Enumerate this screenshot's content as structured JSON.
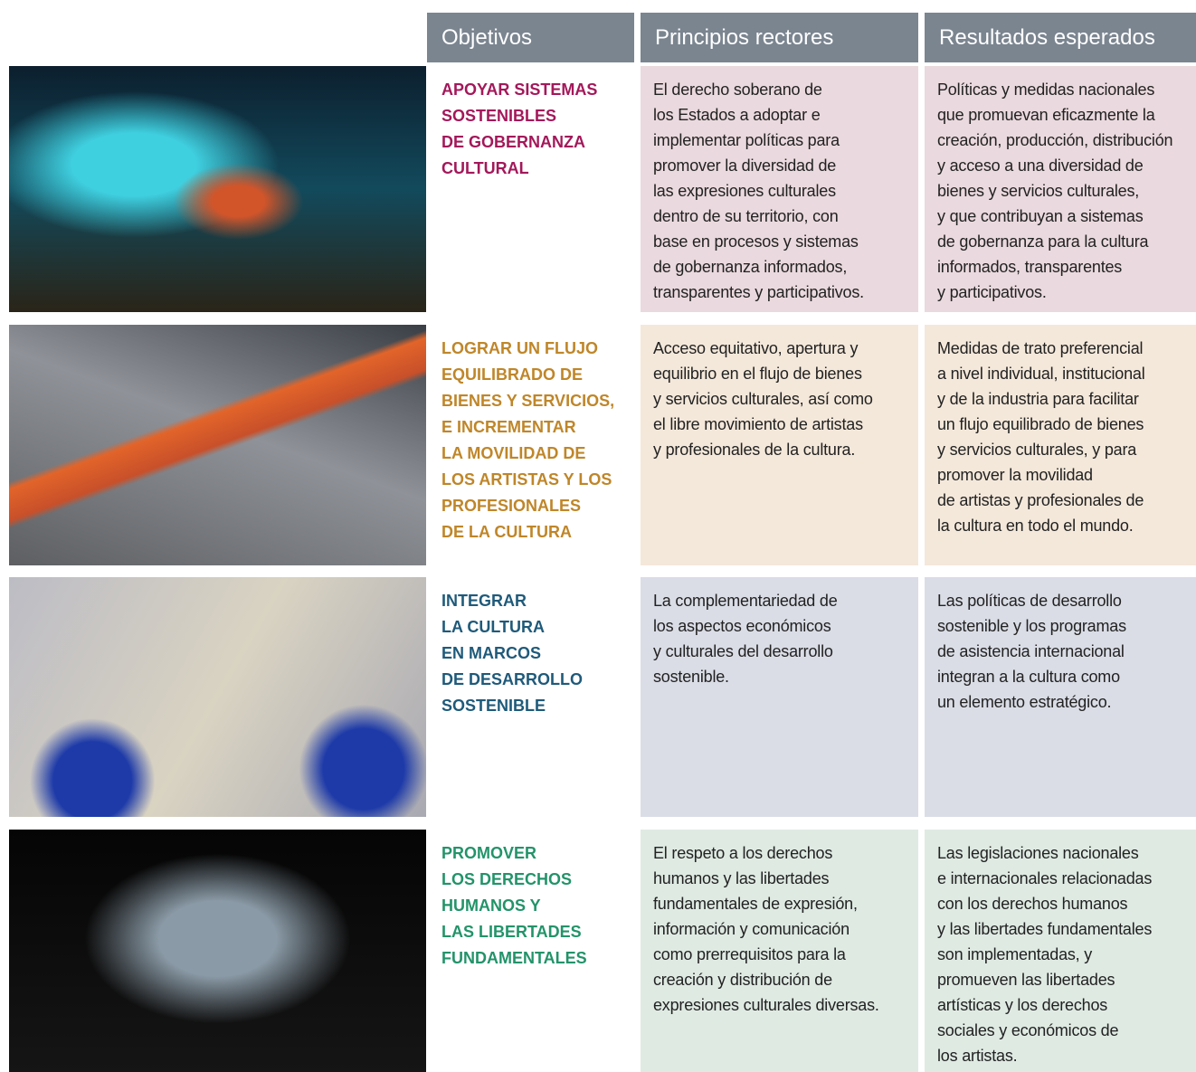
{
  "header": {
    "columns": [
      "Objetivos",
      "Principios rectores",
      "Resultados esperados"
    ]
  },
  "rows": [
    {
      "objective": [
        "APOYAR SISTEMAS",
        "SOSTENIBLES",
        "DE GOBERNANZA",
        "CULTURAL"
      ],
      "principles": [
        "El derecho soberano de",
        "los Estados a adoptar e",
        "implementar políticas para",
        "promover la diversidad de",
        "las expresiones culturales",
        "dentro de su territorio, con",
        "base en procesos y sistemas",
        "de gobernanza informados,",
        "transparentes y participativos."
      ],
      "results": [
        "Políticas y medidas nacionales",
        "que promuevan eficazmente la",
        "creación, producción, distribución",
        "y acceso a una diversidad de",
        "bienes y servicios culturales,",
        "y que contribuyan a sistemas",
        "de gobernanza para la cultura",
        "informados, transparentes",
        "y participativos."
      ]
    },
    {
      "objective": [
        "LOGRAR UN FLUJO",
        "EQUILIBRADO DE",
        "BIENES Y SERVICIOS,",
        "E INCREMENTAR",
        "LA MOVILIDAD DE",
        "LOS ARTISTAS Y LOS",
        "PROFESIONALES",
        "DE LA CULTURA"
      ],
      "principles": [
        "Acceso equitativo, apertura y",
        "equilibrio en el flujo de bienes",
        "y servicios culturales, así como",
        "el libre movimiento de artistas",
        "y profesionales de la cultura."
      ],
      "results": [
        "Medidas de trato preferencial",
        "a nivel individual, institucional",
        "y de la industria para facilitar",
        "un flujo equilibrado de bienes",
        "y servicios culturales, y para",
        "promover la movilidad",
        "de artistas y profesionales de",
        "la cultura en todo el mundo."
      ]
    },
    {
      "objective": [
        "INTEGRAR",
        "LA CULTURA",
        "EN MARCOS",
        "DE DESARROLLO",
        "SOSTENIBLE"
      ],
      "principles": [
        "La complementariedad de",
        "los aspectos económicos",
        "y culturales del desarrollo",
        "sostenible."
      ],
      "results": [
        "Las políticas de desarrollo",
        "sostenible y los programas",
        "de asistencia internacional",
        "integran a la cultura como",
        "un elemento estratégico."
      ]
    },
    {
      "objective": [
        "PROMOVER",
        "LOS DERECHOS",
        "HUMANOS Y",
        "LAS LIBERTADES",
        "FUNDAMENTALES"
      ],
      "principles": [
        "El respeto a los derechos",
        "humanos y las libertades",
        "fundamentales de expresión,",
        "información y comunicación",
        "como prerrequisitos para la",
        "creación y distribución de",
        "expresiones culturales diversas."
      ],
      "results": [
        "Las legislaciones nacionales",
        "e internacionales relacionadas",
        "con los derechos humanos",
        "y las libertades fundamentales",
        "son implementadas, y",
        "promueven las libertades",
        "artísticas y los derechos",
        "sociales y económicos de",
        "los artistas."
      ]
    }
  ]
}
